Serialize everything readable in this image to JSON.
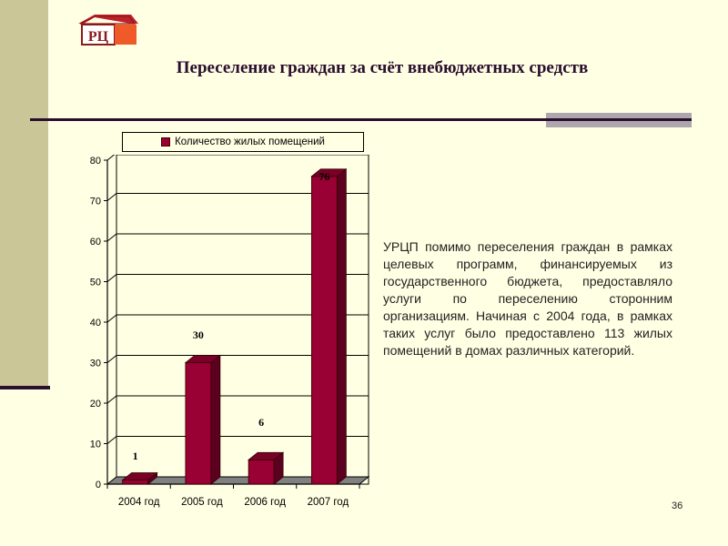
{
  "slide": {
    "title": "Переселение граждан за счёт внебюджетных средств",
    "logo": {
      "icon": "house-logo-icon",
      "text": "РЦ"
    },
    "description": "УРЦП помимо переселения граждан в рамках целевых программ, финансируемых из государственного бюджета, предоставляло услуги по переселению сторонним организациям. Начиная с 2004 года, в рамках таких услуг было предоставлено 113 жилых помещений в домах различных категорий.",
    "page_number": "36",
    "colors": {
      "background": "#FFFFE3",
      "band": "#CBC697",
      "accent_dark": "#2A0E2E",
      "bar": "#990033",
      "bar_side": "#5C0020",
      "bar_top": "#7A0028",
      "floor": "#808080"
    }
  },
  "chart_data": {
    "type": "bar",
    "title": "",
    "legend": [
      "Количество жилых помещений"
    ],
    "legend_position": "top",
    "categories": [
      "2004 год",
      "2005 год",
      "2006 год",
      "2007 год"
    ],
    "series": [
      {
        "name": "Количество жилых помещений",
        "values": [
          1,
          30,
          6,
          76
        ]
      }
    ],
    "data_labels": [
      "1",
      "30",
      "6",
      "76"
    ],
    "xlabel": "",
    "ylabel": "",
    "ylim": [
      0,
      80
    ],
    "yticks": [
      "0",
      "10",
      "20",
      "30",
      "40",
      "50",
      "60",
      "70",
      "80"
    ],
    "grid": true,
    "style": "3d-column"
  }
}
